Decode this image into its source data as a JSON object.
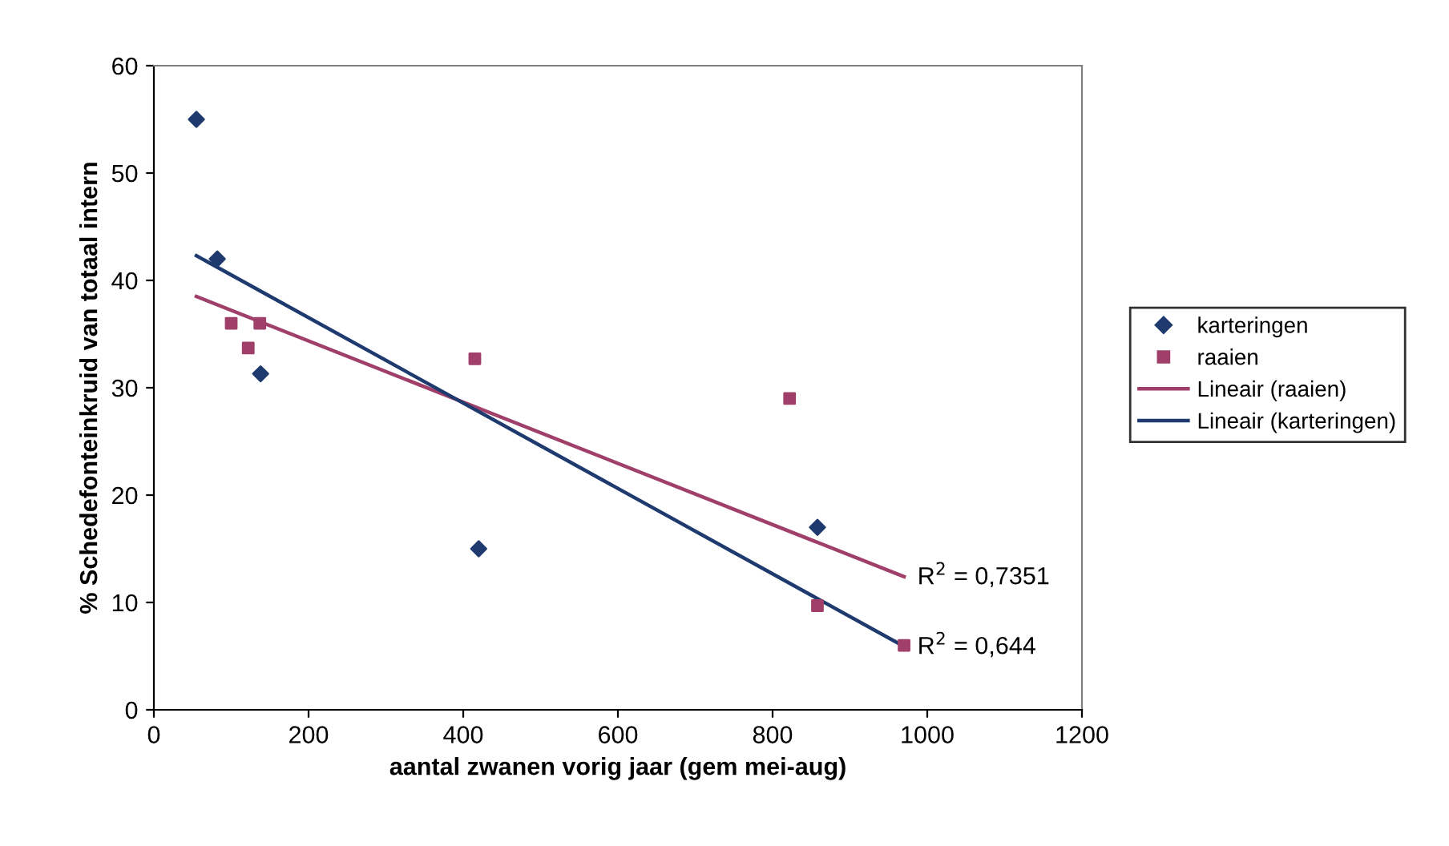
{
  "chart_data": {
    "type": "scatter",
    "xlabel": "aantal zwanen vorig jaar (gem mei-aug)",
    "ylabel": "% Schedefonteinkruid van totaal intern",
    "xlim": [
      0,
      1200
    ],
    "xticks": [
      0,
      200,
      400,
      600,
      800,
      1000,
      1200
    ],
    "ylim": [
      0,
      60
    ],
    "yticks": [
      0,
      10,
      20,
      30,
      40,
      50,
      60
    ],
    "grid": false,
    "legend": "right",
    "series": [
      {
        "name": "karteringen",
        "marker": "diamond",
        "color": "#1f3a6e",
        "x": [
          55,
          82,
          138,
          420,
          858
        ],
        "values": [
          55,
          42,
          31.3,
          15,
          17
        ]
      },
      {
        "name": "raaien",
        "marker": "square",
        "color": "#a0406a",
        "x": [
          100,
          122,
          137,
          415,
          822,
          858,
          970
        ],
        "values": [
          36,
          33.7,
          36,
          32.7,
          29,
          9.7,
          6
        ]
      },
      {
        "name": "Lineair (raaien)",
        "type": "line",
        "color": "#a0406a",
        "x": [
          55,
          970
        ],
        "values": [
          38.5,
          12.4
        ]
      },
      {
        "name": "Lineair (karteringen)",
        "type": "line",
        "color": "#1f3a6e",
        "x": [
          55,
          970
        ],
        "values": [
          42.3,
          5.9
        ]
      }
    ],
    "annotations": [
      {
        "text": "R$^{2}$ = 0,7351",
        "x": 970,
        "y": 12.4
      },
      {
        "text": "R$^{2}$ = 0,644",
        "x": 970,
        "y": 5.9
      }
    ]
  }
}
